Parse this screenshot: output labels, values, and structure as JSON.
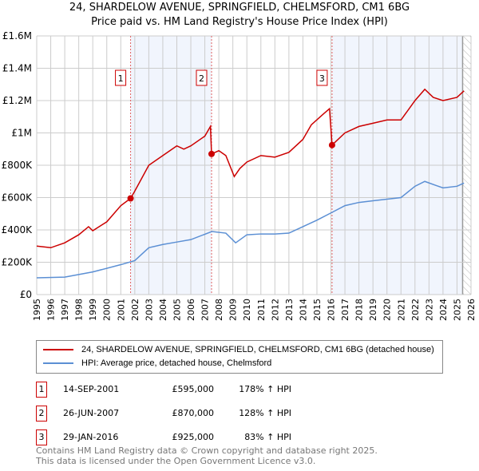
{
  "title": "24, SHARDELOW AVENUE, SPRINGFIELD, CHELMSFORD, CM1 6BG",
  "subtitle": "Price paid vs. HM Land Registry's House Price Index (HPI)",
  "chart_data": {
    "type": "line",
    "xlim": [
      1995,
      2026
    ],
    "ylim": [
      0,
      1600000
    ],
    "x_ticks": [
      "1995",
      "1996",
      "1997",
      "1998",
      "1999",
      "2000",
      "2001",
      "2002",
      "2003",
      "2004",
      "2005",
      "2006",
      "2007",
      "2008",
      "2009",
      "2010",
      "2011",
      "2012",
      "2013",
      "2014",
      "2015",
      "2016",
      "2017",
      "2018",
      "2019",
      "2020",
      "2021",
      "2022",
      "2023",
      "2024",
      "2025",
      "2026"
    ],
    "y_ticks": [
      {
        "v": 0,
        "label": "£0"
      },
      {
        "v": 200000,
        "label": "£200K"
      },
      {
        "v": 400000,
        "label": "£400K"
      },
      {
        "v": 600000,
        "label": "£600K"
      },
      {
        "v": 800000,
        "label": "£800K"
      },
      {
        "v": 1000000,
        "label": "£1M"
      },
      {
        "v": 1200000,
        "label": "£1.2M"
      },
      {
        "v": 1400000,
        "label": "£1.4M"
      },
      {
        "v": 1600000,
        "label": "£1.6M"
      }
    ],
    "grid": true,
    "data_end": 2025.4,
    "series": [
      {
        "name": "24, SHARDELOW AVENUE, SPRINGFIELD, CHELMSFORD, CM1 6BG (detached house)",
        "color": "#cc0000",
        "points": [
          [
            1995,
            300000
          ],
          [
            1996,
            290000
          ],
          [
            1997,
            320000
          ],
          [
            1998,
            370000
          ],
          [
            1998.7,
            420000
          ],
          [
            1999,
            395000
          ],
          [
            2000,
            450000
          ],
          [
            2001,
            550000
          ],
          [
            2001.7,
            595000
          ],
          [
            2002,
            640000
          ],
          [
            2003,
            800000
          ],
          [
            2004,
            860000
          ],
          [
            2005,
            920000
          ],
          [
            2005.5,
            900000
          ],
          [
            2006,
            920000
          ],
          [
            2007,
            980000
          ],
          [
            2007.4,
            1040000
          ],
          [
            2007.48,
            870000
          ],
          [
            2008,
            890000
          ],
          [
            2008.5,
            860000
          ],
          [
            2009.1,
            730000
          ],
          [
            2009.5,
            780000
          ],
          [
            2010,
            820000
          ],
          [
            2011,
            860000
          ],
          [
            2012,
            850000
          ],
          [
            2013,
            880000
          ],
          [
            2014,
            960000
          ],
          [
            2014.6,
            1050000
          ],
          [
            2015.5,
            1120000
          ],
          [
            2015.9,
            1150000
          ],
          [
            2016.08,
            925000
          ],
          [
            2017,
            1000000
          ],
          [
            2018,
            1040000
          ],
          [
            2019,
            1060000
          ],
          [
            2020,
            1080000
          ],
          [
            2021,
            1080000
          ],
          [
            2022,
            1200000
          ],
          [
            2022.7,
            1270000
          ],
          [
            2023.3,
            1220000
          ],
          [
            2024,
            1200000
          ],
          [
            2025,
            1220000
          ],
          [
            2025.5,
            1260000
          ]
        ]
      },
      {
        "name": "HPI: Average price, detached house, Chelmsford",
        "color": "#5b8fd4",
        "points": [
          [
            1995,
            104000
          ],
          [
            1997,
            108000
          ],
          [
            1999,
            140000
          ],
          [
            2001,
            185000
          ],
          [
            2002,
            210000
          ],
          [
            2003,
            290000
          ],
          [
            2004,
            310000
          ],
          [
            2005,
            325000
          ],
          [
            2006,
            340000
          ],
          [
            2007.5,
            390000
          ],
          [
            2008.5,
            380000
          ],
          [
            2009.2,
            320000
          ],
          [
            2010,
            370000
          ],
          [
            2011,
            375000
          ],
          [
            2012,
            375000
          ],
          [
            2013,
            380000
          ],
          [
            2014,
            420000
          ],
          [
            2015,
            460000
          ],
          [
            2016,
            505000
          ],
          [
            2017,
            550000
          ],
          [
            2018,
            570000
          ],
          [
            2019,
            580000
          ],
          [
            2020,
            590000
          ],
          [
            2021,
            600000
          ],
          [
            2022,
            670000
          ],
          [
            2022.7,
            700000
          ],
          [
            2023.5,
            675000
          ],
          [
            2024,
            660000
          ],
          [
            2025,
            670000
          ],
          [
            2025.5,
            690000
          ]
        ]
      }
    ],
    "sales": [
      {
        "id": "1",
        "x": 2001.7,
        "price": 595000
      },
      {
        "id": "2",
        "x": 2007.48,
        "price": 870000
      },
      {
        "id": "3",
        "x": 2016.08,
        "price": 925000
      }
    ]
  },
  "legend": {
    "red": "24, SHARDELOW AVENUE, SPRINGFIELD, CHELMSFORD, CM1 6BG (detached house)",
    "blue": "HPI: Average price, detached house, Chelmsford"
  },
  "table": [
    {
      "id": "1",
      "date": "14-SEP-2001",
      "price": "£595,000",
      "hpi": "178% ↑ HPI"
    },
    {
      "id": "2",
      "date": "26-JUN-2007",
      "price": "£870,000",
      "hpi": "128% ↑ HPI"
    },
    {
      "id": "3",
      "date": "29-JAN-2016",
      "price": "£925,000",
      "hpi": "83% ↑ HPI"
    }
  ],
  "footer": {
    "line1": "Contains HM Land Registry data © Crown copyright and database right 2025.",
    "line2": "This data is licensed under the Open Government Licence v3.0."
  }
}
